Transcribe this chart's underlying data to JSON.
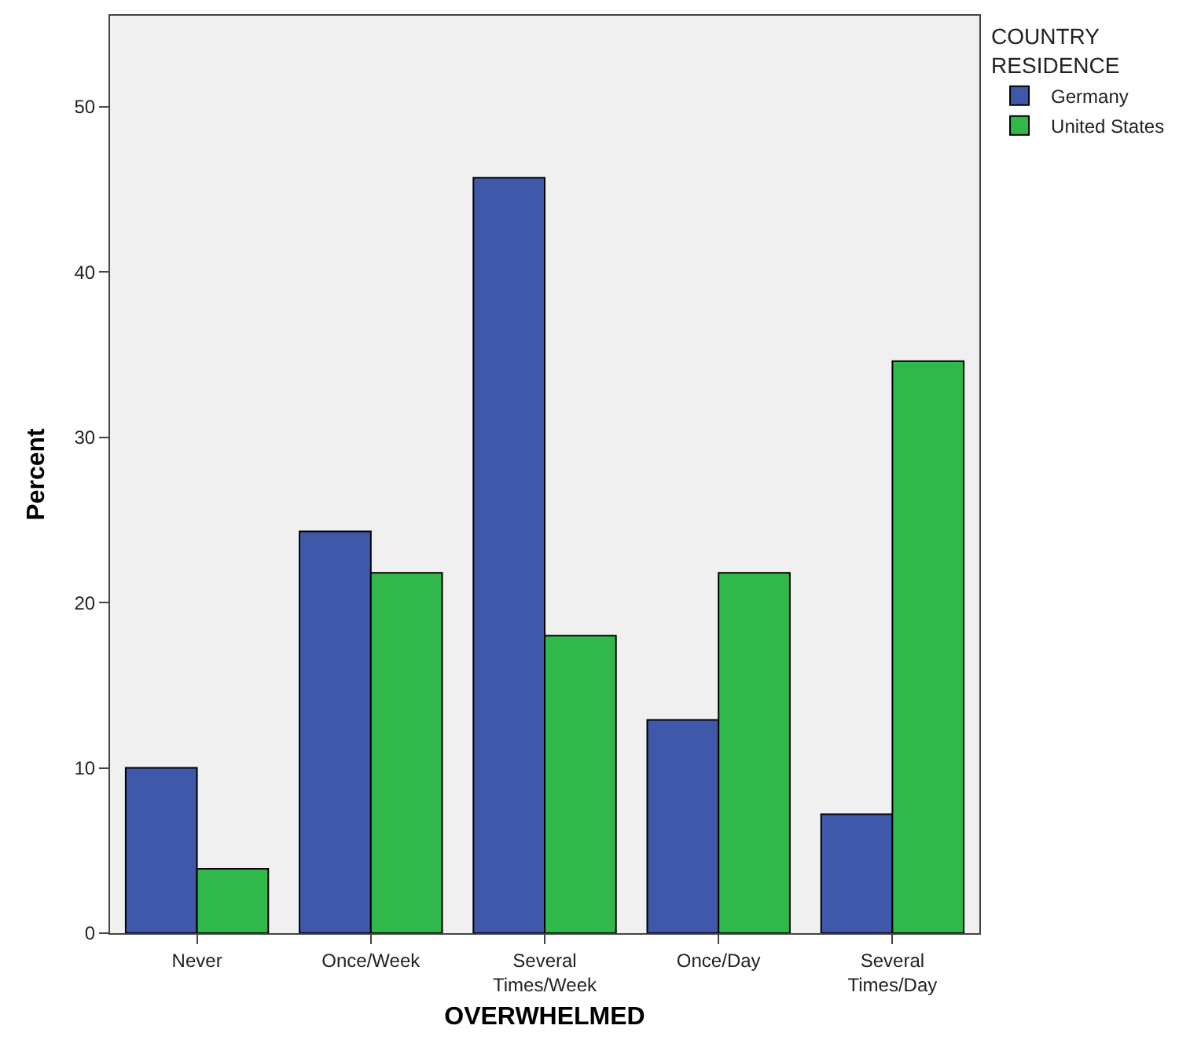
{
  "chart_data": {
    "type": "bar",
    "xlabel": "OVERWHELMED",
    "ylabel": "Percent",
    "legend_title": "COUNTRY RESIDENCE",
    "legend": "right",
    "categories": [
      "Never",
      "Once/Week",
      "Several Times/Week",
      "Once/Day",
      "Several Times/Day"
    ],
    "series": [
      {
        "name": "Germany",
        "color": "#3f58aa",
        "values": [
          10.0,
          24.3,
          45.7,
          12.9,
          7.2
        ]
      },
      {
        "name": "United States",
        "color": "#31b84a",
        "values": [
          3.9,
          21.8,
          18.0,
          21.8,
          34.6
        ]
      }
    ],
    "ylim": [
      0,
      55.5
    ],
    "yticks": [
      0,
      10,
      20,
      30,
      40,
      50
    ],
    "grid": false
  }
}
